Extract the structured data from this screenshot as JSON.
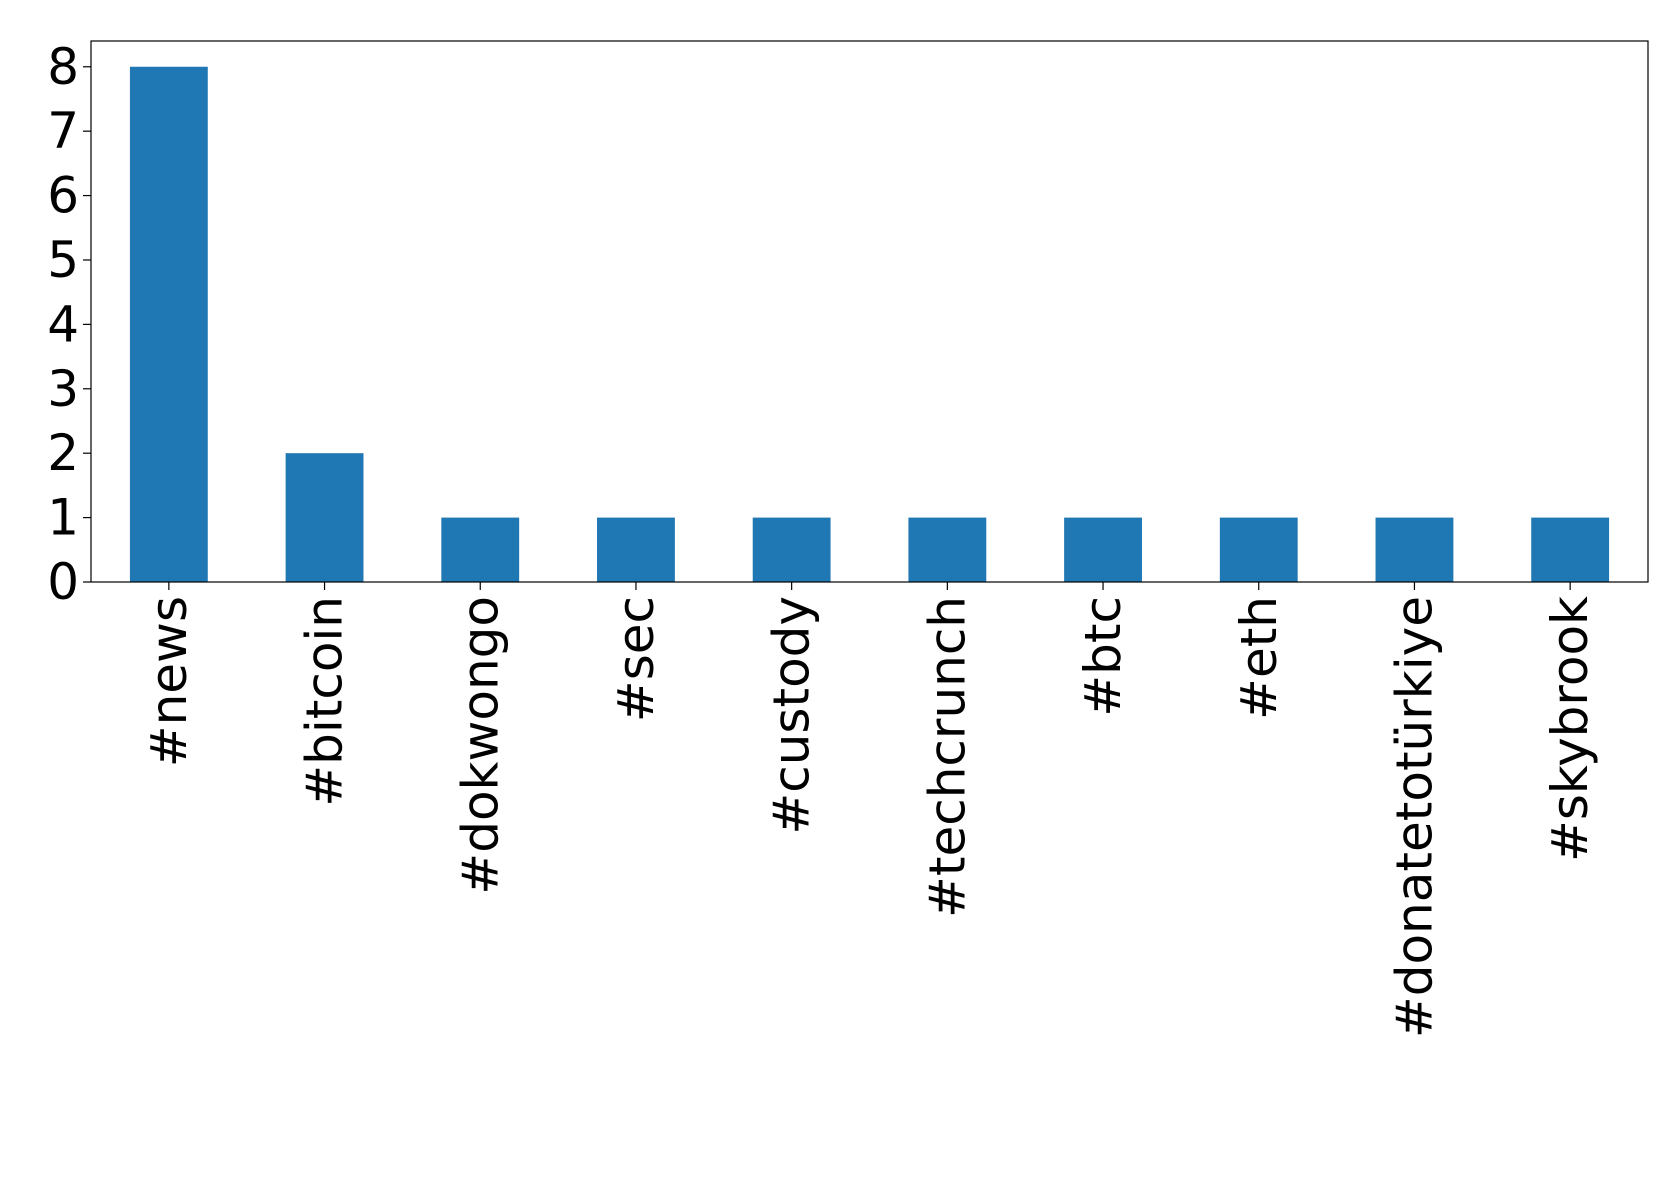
{
  "chart_data": {
    "type": "bar",
    "categories": [
      "#news",
      "#bitcoin",
      "#dokwongo",
      "#sec",
      "#custody",
      "#techcrunch",
      "#btc",
      "#eth",
      "#donatetotürkiye",
      "#skybrook"
    ],
    "values": [
      8,
      2,
      1,
      1,
      1,
      1,
      1,
      1,
      1,
      1
    ],
    "color": "#1f77b4",
    "ylim": [
      0,
      8.4
    ],
    "yticks": [
      0,
      1,
      2,
      3,
      4,
      5,
      6,
      7,
      8
    ],
    "grid": false
  }
}
